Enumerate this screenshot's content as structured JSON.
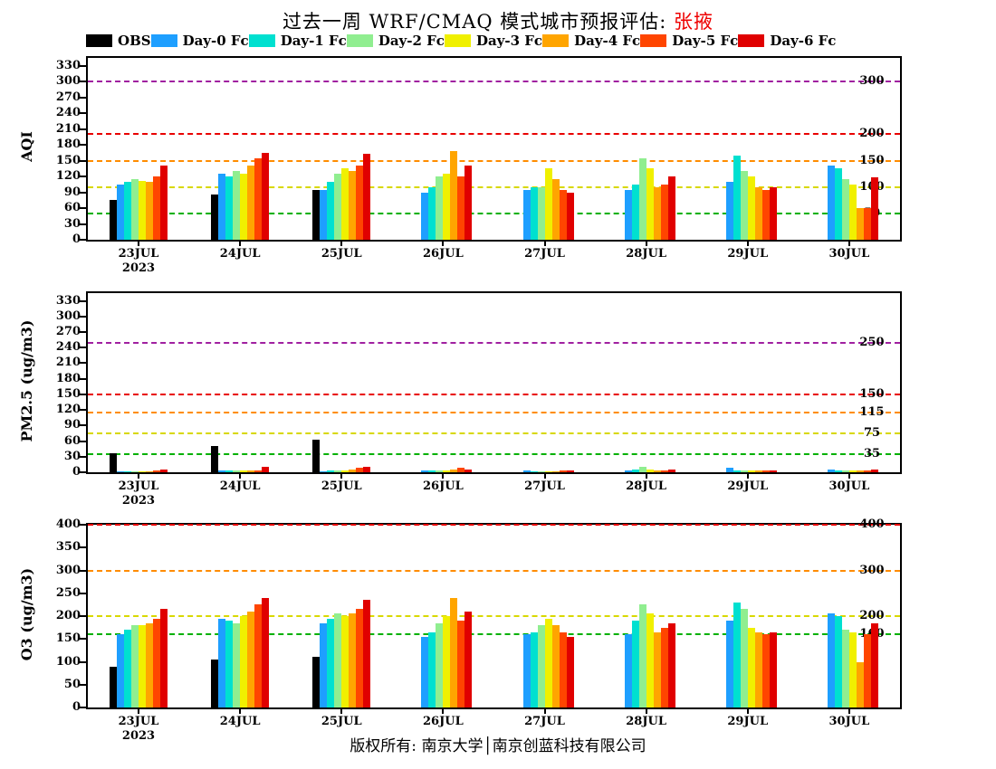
{
  "title": {
    "prefix": "过去一周 WRF/CMAQ 模式城市预报评估: ",
    "city": "张掖",
    "city_color": "#ee0000"
  },
  "caption": "版权所有: 南京大学│南京创蓝科技有限公司",
  "legend": [
    {
      "label": "OBS",
      "color": "#000000"
    },
    {
      "label": "Day-0 Fc",
      "color": "#1e9fff"
    },
    {
      "label": "Day-1 Fc",
      "color": "#00e0d0"
    },
    {
      "label": "Day-2 Fc",
      "color": "#90ee90"
    },
    {
      "label": "Day-3 Fc",
      "color": "#f0f000"
    },
    {
      "label": "Day-4 Fc",
      "color": "#ffa500"
    },
    {
      "label": "Day-5 Fc",
      "color": "#ff4500"
    },
    {
      "label": "Day-6 Fc",
      "color": "#e00000"
    }
  ],
  "chart_data": [
    {
      "type": "bar",
      "title": "AQI forecast vs observation",
      "ylabel": "AQI",
      "xlabel": "",
      "ylim": [
        0,
        345
      ],
      "yticks": [
        0,
        30,
        60,
        90,
        120,
        150,
        180,
        210,
        240,
        270,
        300,
        330
      ],
      "grid": false,
      "legend_position": "top",
      "categories": [
        "23JUL",
        "24JUL",
        "25JUL",
        "26JUL",
        "27JUL",
        "28JUL",
        "29JUL",
        "30JUL"
      ],
      "year_label": "2023",
      "ref_lines": [
        {
          "value": 50,
          "color": "#00b000",
          "label": "50"
        },
        {
          "value": 100,
          "color": "#d8d800",
          "label": "100"
        },
        {
          "value": 150,
          "color": "#ff8c00",
          "label": "150"
        },
        {
          "value": 200,
          "color": "#e80000",
          "label": "200"
        },
        {
          "value": 300,
          "color": "#a020a0",
          "label": "300"
        }
      ],
      "series": [
        {
          "name": "OBS",
          "color": "#000000",
          "values": [
            75,
            85,
            95,
            null,
            null,
            null,
            null,
            null
          ]
        },
        {
          "name": "Day-0 Fc",
          "color": "#1e9fff",
          "values": [
            105,
            125,
            95,
            90,
            95,
            95,
            110,
            140
          ]
        },
        {
          "name": "Day-1 Fc",
          "color": "#00e0d0",
          "values": [
            110,
            120,
            110,
            100,
            100,
            105,
            160,
            135
          ]
        },
        {
          "name": "Day-2 Fc",
          "color": "#90ee90",
          "values": [
            115,
            130,
            125,
            120,
            100,
            155,
            130,
            115
          ]
        },
        {
          "name": "Day-3 Fc",
          "color": "#f0f000",
          "values": [
            112,
            125,
            135,
            125,
            135,
            135,
            120,
            105
          ]
        },
        {
          "name": "Day-4 Fc",
          "color": "#ffa500",
          "values": [
            110,
            140,
            130,
            168,
            115,
            100,
            100,
            60
          ]
        },
        {
          "name": "Day-5 Fc",
          "color": "#ff4500",
          "values": [
            120,
            155,
            140,
            120,
            95,
            105,
            95,
            60
          ]
        },
        {
          "name": "Day-6 Fc",
          "color": "#e00000",
          "values": [
            140,
            165,
            163,
            140,
            90,
            120,
            100,
            118
          ]
        }
      ]
    },
    {
      "type": "bar",
      "title": "PM2.5 forecast vs observation",
      "ylabel": "PM2.5 (ug/m3)",
      "xlabel": "",
      "ylim": [
        0,
        345
      ],
      "yticks": [
        0,
        30,
        60,
        90,
        120,
        150,
        180,
        210,
        240,
        270,
        300,
        330
      ],
      "grid": false,
      "legend_position": "top",
      "categories": [
        "23JUL",
        "24JUL",
        "25JUL",
        "26JUL",
        "27JUL",
        "28JUL",
        "29JUL",
        "30JUL"
      ],
      "year_label": "2023",
      "ref_lines": [
        {
          "value": 35,
          "color": "#00b000",
          "label": "35"
        },
        {
          "value": 75,
          "color": "#d8d800",
          "label": "75"
        },
        {
          "value": 115,
          "color": "#ff8c00",
          "label": "115"
        },
        {
          "value": 150,
          "color": "#e80000",
          "label": "150"
        },
        {
          "value": 250,
          "color": "#a020a0",
          "label": "250"
        }
      ],
      "series": [
        {
          "name": "OBS",
          "color": "#000000",
          "values": [
            37,
            50,
            62,
            null,
            null,
            null,
            null,
            null
          ]
        },
        {
          "name": "Day-0 Fc",
          "color": "#1e9fff",
          "values": [
            2,
            3,
            2,
            3,
            3,
            3,
            8,
            5
          ]
        },
        {
          "name": "Day-1 Fc",
          "color": "#00e0d0",
          "values": [
            2,
            3,
            3,
            3,
            2,
            5,
            4,
            4
          ]
        },
        {
          "name": "Day-2 Fc",
          "color": "#90ee90",
          "values": [
            2,
            3,
            3,
            3,
            2,
            10,
            3,
            4
          ]
        },
        {
          "name": "Day-3 Fc",
          "color": "#f0f000",
          "values": [
            2,
            3,
            4,
            4,
            2,
            5,
            3,
            3
          ]
        },
        {
          "name": "Day-4 Fc",
          "color": "#ffa500",
          "values": [
            2,
            4,
            5,
            5,
            2,
            4,
            3,
            3
          ]
        },
        {
          "name": "Day-5 Fc",
          "color": "#ff4500",
          "values": [
            3,
            4,
            8,
            8,
            3,
            4,
            3,
            3
          ]
        },
        {
          "name": "Day-6 Fc",
          "color": "#e00000",
          "values": [
            6,
            10,
            10,
            6,
            3,
            5,
            3,
            5
          ]
        }
      ]
    },
    {
      "type": "bar",
      "title": "O3 forecast vs observation",
      "ylabel": "O3 (ug/m3)",
      "xlabel": "",
      "ylim": [
        0,
        400
      ],
      "yticks": [
        0,
        50,
        100,
        150,
        200,
        250,
        300,
        350,
        400
      ],
      "grid": false,
      "legend_position": "top",
      "categories": [
        "23JUL",
        "24JUL",
        "25JUL",
        "26JUL",
        "27JUL",
        "28JUL",
        "29JUL",
        "30JUL"
      ],
      "year_label": "2023",
      "ref_lines": [
        {
          "value": 160,
          "color": "#00b000",
          "label": "160"
        },
        {
          "value": 200,
          "color": "#d8d800",
          "label": "200"
        },
        {
          "value": 300,
          "color": "#ff8c00",
          "label": "300"
        },
        {
          "value": 400,
          "color": "#e80000",
          "label": "400"
        }
      ],
      "series": [
        {
          "name": "OBS",
          "color": "#000000",
          "values": [
            90,
            105,
            110,
            null,
            null,
            null,
            null,
            null
          ]
        },
        {
          "name": "Day-0 Fc",
          "color": "#1e9fff",
          "values": [
            160,
            195,
            185,
            155,
            160,
            160,
            190,
            205
          ]
        },
        {
          "name": "Day-1 Fc",
          "color": "#00e0d0",
          "values": [
            170,
            190,
            195,
            165,
            165,
            190,
            230,
            200
          ]
        },
        {
          "name": "Day-2 Fc",
          "color": "#90ee90",
          "values": [
            180,
            185,
            205,
            185,
            180,
            225,
            215,
            170
          ]
        },
        {
          "name": "Day-3 Fc",
          "color": "#f0f000",
          "values": [
            180,
            200,
            200,
            200,
            195,
            205,
            175,
            165
          ]
        },
        {
          "name": "Day-4 Fc",
          "color": "#ffa500",
          "values": [
            185,
            210,
            205,
            240,
            180,
            165,
            165,
            100
          ]
        },
        {
          "name": "Day-5 Fc",
          "color": "#ff4500",
          "values": [
            195,
            225,
            215,
            190,
            165,
            175,
            160,
            160
          ]
        },
        {
          "name": "Day-6 Fc",
          "color": "#e00000",
          "values": [
            215,
            240,
            235,
            210,
            155,
            185,
            165,
            185
          ]
        }
      ]
    }
  ]
}
